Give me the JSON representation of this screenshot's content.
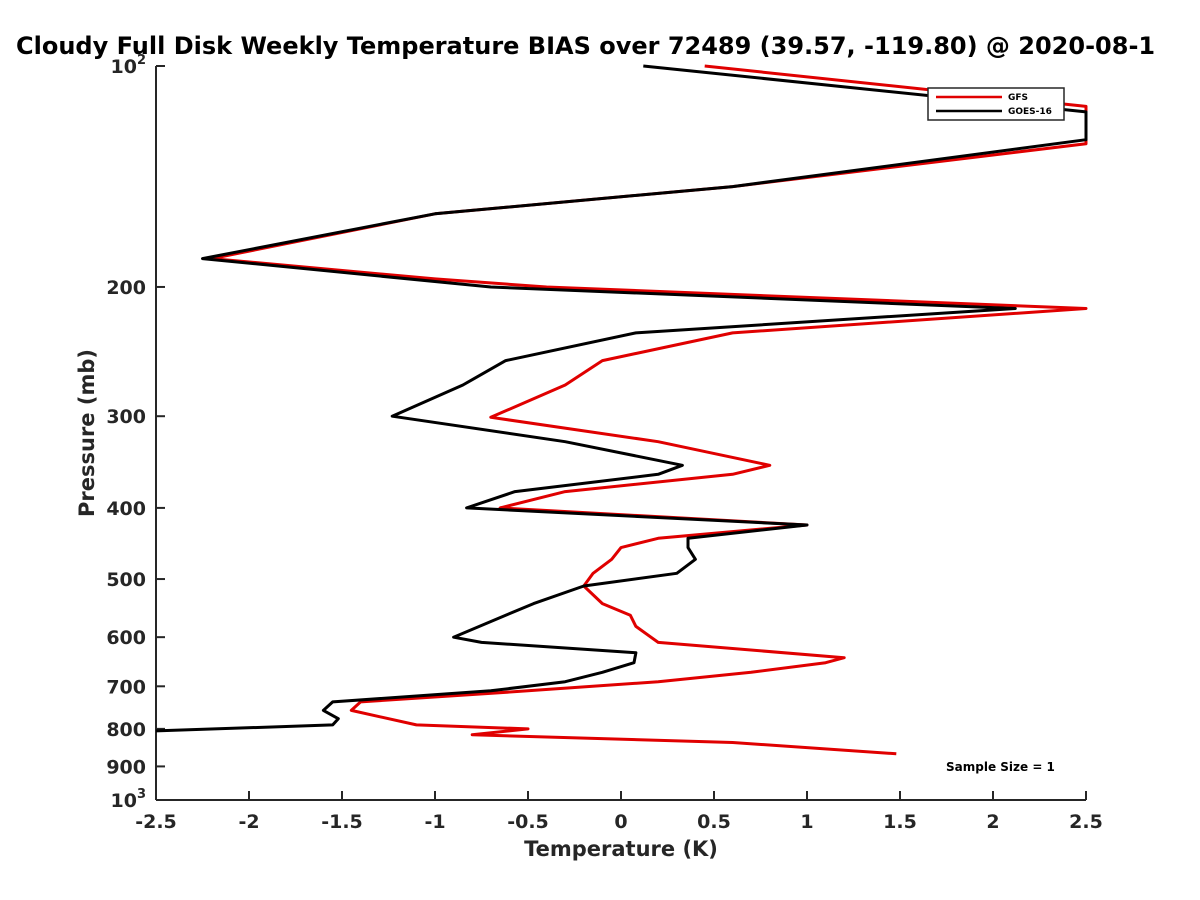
{
  "chart_data": {
    "type": "line",
    "title": "Cloudy Full Disk Weekly Temperature BIAS over 72489 (39.57, -119.80) @ 2020-08-1",
    "xlabel": "Temperature (K)",
    "ylabel": "Pressure (mb)",
    "xlim": [
      -2.5,
      2.5
    ],
    "ylim": [
      100,
      1000
    ],
    "y_scale": "log",
    "y_reversed": true,
    "x_ticks": [
      "-2.5",
      "-2",
      "-1.5",
      "-1",
      "-0.5",
      "0",
      "0.5",
      "1",
      "1.5",
      "2",
      "2.5"
    ],
    "y_ticks": [
      {
        "value": 100,
        "base": "10",
        "exp": "2"
      },
      {
        "value": 200,
        "label": "200"
      },
      {
        "value": 300,
        "label": "300"
      },
      {
        "value": 400,
        "label": "400"
      },
      {
        "value": 500,
        "label": "500"
      },
      {
        "value": 600,
        "label": "600"
      },
      {
        "value": 700,
        "label": "700"
      },
      {
        "value": 800,
        "label": "800"
      },
      {
        "value": 900,
        "label": "900"
      },
      {
        "value": 1000,
        "base": "10",
        "exp": "3"
      }
    ],
    "legend_position": "top-right",
    "annotation": "Sample Size = 1",
    "series": [
      {
        "name": "GFS",
        "color": "#e00000",
        "points": [
          [
            0.45,
            100
          ],
          [
            2.5,
            113.5
          ],
          [
            2.5,
            127.6
          ],
          [
            0.6,
            146
          ],
          [
            -1.0,
            159
          ],
          [
            -2.2,
            183
          ],
          [
            -1.0,
            195
          ],
          [
            -0.4,
            200
          ],
          [
            2.5,
            214
          ],
          [
            0.6,
            231
          ],
          [
            -0.1,
            252
          ],
          [
            -0.3,
            272
          ],
          [
            -0.7,
            301
          ],
          [
            0.2,
            325
          ],
          [
            0.8,
            350
          ],
          [
            0.6,
            360
          ],
          [
            -0.3,
            380
          ],
          [
            -0.65,
            400
          ],
          [
            1.0,
            422
          ],
          [
            0.2,
            440
          ],
          [
            0.0,
            453
          ],
          [
            -0.05,
            470
          ],
          [
            -0.15,
            491
          ],
          [
            -0.2,
            511
          ],
          [
            -0.1,
            540
          ],
          [
            0.05,
            560
          ],
          [
            0.08,
            580
          ],
          [
            0.2,
            610
          ],
          [
            1.2,
            640
          ],
          [
            1.1,
            650
          ],
          [
            0.7,
            670
          ],
          [
            0.2,
            690
          ],
          [
            -0.5,
            710
          ],
          [
            -1.4,
            735
          ],
          [
            -1.45,
            755
          ],
          [
            -1.1,
            790
          ],
          [
            -0.5,
            800
          ],
          [
            -0.8,
            815
          ],
          [
            0.6,
            835
          ],
          [
            1.48,
            865
          ]
        ]
      },
      {
        "name": "GOES-16",
        "color": "#000000",
        "points": [
          [
            0.12,
            100
          ],
          [
            2.5,
            115.5
          ],
          [
            2.5,
            126
          ],
          [
            0.6,
            146
          ],
          [
            -1.0,
            159
          ],
          [
            -2.25,
            183
          ],
          [
            -0.7,
            200
          ],
          [
            2.12,
            214
          ],
          [
            0.08,
            231
          ],
          [
            -0.62,
            252
          ],
          [
            -0.85,
            272
          ],
          [
            -1.23,
            300
          ],
          [
            -0.3,
            325
          ],
          [
            0.33,
            350
          ],
          [
            0.2,
            360
          ],
          [
            -0.57,
            380
          ],
          [
            -0.83,
            400
          ],
          [
            1.0,
            422
          ],
          [
            0.36,
            440
          ],
          [
            0.36,
            453
          ],
          [
            0.4,
            470
          ],
          [
            0.3,
            491
          ],
          [
            -0.2,
            511
          ],
          [
            -0.47,
            540
          ],
          [
            -0.62,
            560
          ],
          [
            -0.9,
            600
          ],
          [
            -0.75,
            610
          ],
          [
            0.08,
            630
          ],
          [
            0.07,
            650
          ],
          [
            -0.1,
            670
          ],
          [
            -0.3,
            690
          ],
          [
            -0.7,
            710
          ],
          [
            -1.55,
            735
          ],
          [
            -1.6,
            755
          ],
          [
            -1.52,
            775
          ],
          [
            -1.55,
            790
          ],
          [
            -2.5,
            805
          ]
        ]
      }
    ]
  }
}
